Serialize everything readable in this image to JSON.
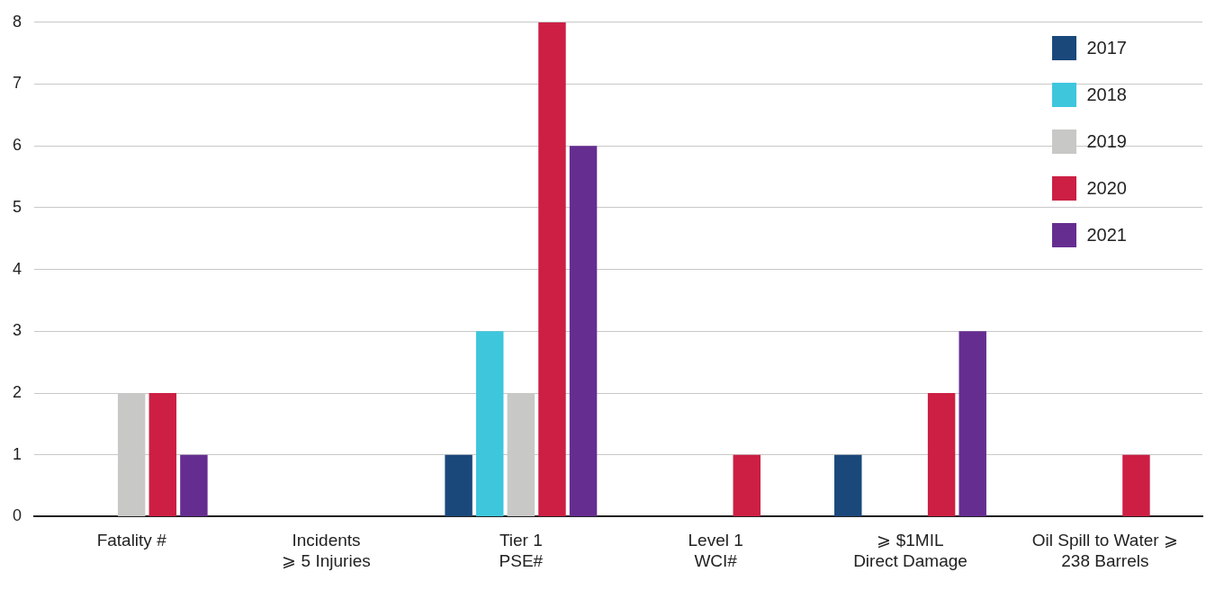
{
  "chart_data": {
    "type": "bar",
    "categories": [
      "Fatality #",
      "Incidents\n⩾ 5 Injuries",
      "Tier 1\nPSE#",
      "Level 1\nWCI#",
      "⩾ $1MIL\nDirect Damage",
      "Oil Spill to Water ⩾\n238 Barrels"
    ],
    "series": [
      {
        "name": "2017",
        "color": "#1a487b",
        "values": [
          0,
          0,
          1,
          0,
          1,
          0
        ]
      },
      {
        "name": "2018",
        "color": "#3ec6dd",
        "values": [
          0,
          0,
          3,
          0,
          0,
          0
        ]
      },
      {
        "name": "2019",
        "color": "#c8c8c6",
        "values": [
          2,
          0,
          2,
          0,
          0,
          0
        ]
      },
      {
        "name": "2020",
        "color": "#cc1f43",
        "values": [
          2,
          0,
          8,
          1,
          2,
          1
        ]
      },
      {
        "name": "2021",
        "color": "#662d91",
        "values": [
          1,
          0,
          6,
          0,
          3,
          0
        ]
      }
    ],
    "ylim": [
      0,
      8
    ],
    "yticks": [
      0,
      1,
      2,
      3,
      4,
      5,
      6,
      7,
      8
    ],
    "grid": "y",
    "legend": "top right"
  }
}
